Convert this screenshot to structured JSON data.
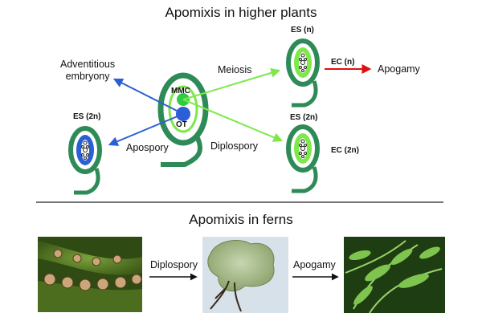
{
  "top_title": "Apomixis in higher plants",
  "bottom_title": "Apomixis in ferns",
  "labels": {
    "adventitious": "Adventitious\nembryony",
    "meiosis": "Meiosis",
    "apospory": "Apospory",
    "diplospory_top": "Diplospory",
    "apogamy_top": "Apogamy",
    "es_n": "ES (n)",
    "es_2n_right": "ES (2n)",
    "es_2n_left": "ES (2n)",
    "ec_n": "EC (n)",
    "ec_2n": "EC (2n)",
    "mmc": "MMC",
    "ot": "OT",
    "diplospory_bottom": "Diplospory",
    "apogamy_bottom": "Apogamy"
  },
  "colors": {
    "ovule_green": "#2e8b57",
    "light_green": "#7ee84a",
    "blue": "#2a5fd6",
    "red": "#e01010"
  },
  "images": {
    "fern_sori": "fern-sori-photo",
    "prothallus": "prothallus-photo",
    "fern_plants": "fern-plants-photo"
  }
}
